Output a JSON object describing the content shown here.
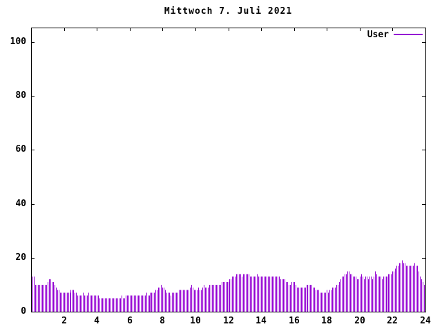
{
  "title": "Mittwoch 7. Juli 2021",
  "legend": {
    "label": "User"
  },
  "colors": {
    "series": "#9400d3",
    "axis": "#000000",
    "background": "#ffffff",
    "text": "#000000"
  },
  "chart_data": {
    "type": "bar",
    "style": "impulses",
    "title": "Mittwoch 7. Juli 2021",
    "xlabel": "",
    "ylabel": "",
    "x_unit": "hour of day",
    "sample_interval_minutes": 5,
    "xlim": [
      0,
      24
    ],
    "ylim": [
      0,
      105
    ],
    "xticks": [
      2,
      4,
      6,
      8,
      10,
      12,
      14,
      16,
      18,
      20,
      22,
      24
    ],
    "yticks": [
      0,
      20,
      40,
      60,
      80,
      100
    ],
    "grid": false,
    "legend_position": "top-right",
    "series": [
      {
        "name": "User",
        "color": "#9400d3",
        "values": [
          13,
          13,
          10,
          10,
          10,
          10,
          10,
          10,
          10,
          10,
          10,
          11,
          12,
          12,
          11,
          11,
          10,
          9,
          8,
          8,
          7,
          7,
          7,
          7,
          7,
          7,
          7,
          7,
          8,
          8,
          8,
          7,
          7,
          6,
          6,
          6,
          6,
          7,
          6,
          6,
          6,
          7,
          6,
          6,
          6,
          6,
          6,
          6,
          6,
          5,
          5,
          5,
          5,
          5,
          5,
          5,
          5,
          5,
          5,
          5,
          5,
          5,
          5,
          5,
          5,
          6,
          5,
          5,
          6,
          6,
          6,
          6,
          6,
          6,
          6,
          6,
          6,
          6,
          6,
          6,
          6,
          6,
          6,
          7,
          6,
          6,
          7,
          7,
          7,
          7,
          8,
          8,
          9,
          9,
          10,
          9,
          9,
          8,
          7,
          7,
          7,
          6,
          7,
          7,
          7,
          7,
          7,
          8,
          8,
          8,
          8,
          8,
          8,
          8,
          8,
          9,
          10,
          9,
          8,
          8,
          8,
          9,
          8,
          8,
          9,
          10,
          9,
          9,
          9,
          10,
          10,
          10,
          10,
          10,
          10,
          10,
          10,
          10,
          11,
          11,
          11,
          11,
          11,
          11,
          12,
          12,
          13,
          13,
          13,
          14,
          14,
          14,
          14,
          13,
          14,
          14,
          14,
          14,
          14,
          13,
          13,
          13,
          13,
          13,
          14,
          13,
          13,
          13,
          13,
          13,
          13,
          13,
          13,
          13,
          13,
          13,
          13,
          13,
          13,
          13,
          13,
          12,
          12,
          12,
          12,
          11,
          11,
          10,
          10,
          11,
          11,
          11,
          10,
          9,
          9,
          9,
          9,
          9,
          9,
          9,
          10,
          10,
          10,
          10,
          10,
          9,
          9,
          8,
          8,
          8,
          7,
          7,
          7,
          7,
          7,
          8,
          7,
          8,
          8,
          9,
          9,
          9,
          10,
          10,
          11,
          12,
          13,
          13,
          14,
          14,
          15,
          15,
          14,
          14,
          13,
          13,
          13,
          12,
          12,
          13,
          14,
          13,
          12,
          13,
          13,
          12,
          13,
          13,
          12,
          13,
          15,
          14,
          13,
          13,
          13,
          12,
          13,
          13,
          13,
          13,
          14,
          14,
          14,
          15,
          15,
          16,
          17,
          17,
          18,
          18,
          19,
          18,
          18,
          17,
          17,
          17,
          17,
          17,
          17,
          18,
          17,
          17,
          15,
          13,
          12,
          11,
          10,
          10
        ]
      }
    ]
  }
}
